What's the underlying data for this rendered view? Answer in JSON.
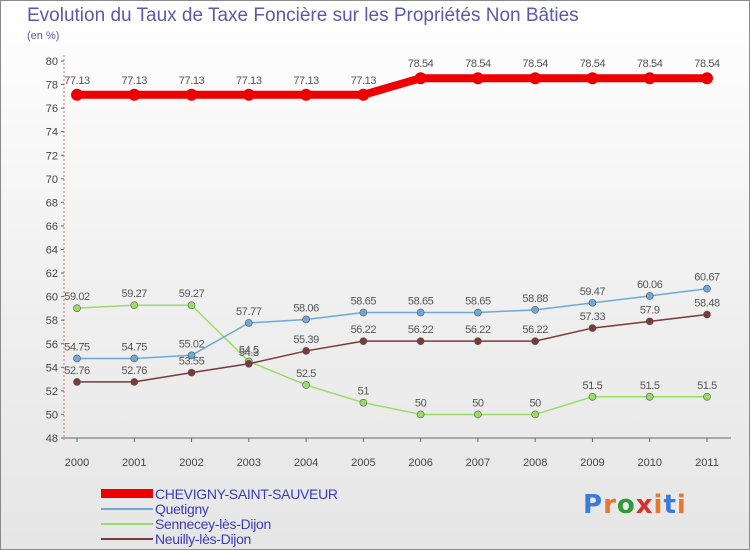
{
  "title": "Evolution du Taux de Taxe Foncière sur les Propriétés Non Bâties",
  "unit_label": "(en %)",
  "logo": {
    "text": "Proxiti"
  },
  "chart_data": {
    "type": "line",
    "title": "Evolution du Taux de Taxe Foncière sur les Propriétés Non Bâties",
    "ylabel": "(en %)",
    "xlabel": "",
    "x": [
      "2000",
      "2001",
      "2002",
      "2003",
      "2004",
      "2005",
      "2006",
      "2007",
      "2008",
      "2009",
      "2010",
      "2011"
    ],
    "ylim": [
      48,
      80
    ],
    "yticks": [
      "48",
      "50",
      "52",
      "54",
      "56",
      "58",
      "60",
      "62",
      "64",
      "66",
      "68",
      "70",
      "72",
      "74",
      "76",
      "78",
      "80"
    ],
    "grid": false,
    "legend_position": "bottom-left",
    "series": [
      {
        "name": "CHEVIGNY-SAINT-SAUVEUR",
        "color": "#ee0000",
        "values": [
          77.13,
          77.13,
          77.13,
          77.13,
          77.13,
          77.13,
          78.54,
          78.54,
          78.54,
          78.54,
          78.54,
          78.54
        ],
        "labels": [
          "77.13",
          "77.13",
          "77.13",
          "77.13",
          "77.13",
          "77.13",
          "78.54",
          "78.54",
          "78.54",
          "78.54",
          "78.54",
          "78.54"
        ]
      },
      {
        "name": "Quetigny",
        "color": "#6fa8d8",
        "values": [
          54.75,
          54.75,
          55.02,
          57.77,
          58.06,
          58.65,
          58.65,
          58.65,
          58.88,
          59.47,
          60.06,
          60.67
        ],
        "labels": [
          "54.75",
          "54.75",
          "55.02",
          "57.77",
          "58.06",
          "58.65",
          "58.65",
          "58.65",
          "58.88",
          "59.47",
          "60.06",
          "60.67"
        ]
      },
      {
        "name": "Sennecey-lès-Dijon",
        "color": "#99dd66",
        "values": [
          59.02,
          59.27,
          59.27,
          54.5,
          52.5,
          51,
          50,
          50,
          50,
          51.5,
          51.5,
          51.5
        ],
        "labels": [
          "59.02",
          "59.27",
          "59.27",
          "54.5",
          "52.5",
          "51",
          "50",
          "50",
          "50",
          "51.5",
          "51.5",
          "51.5"
        ]
      },
      {
        "name": "Neuilly-lès-Dijon",
        "color": "#7a3a3a",
        "values": [
          52.76,
          52.76,
          53.55,
          54.3,
          55.39,
          56.22,
          56.22,
          56.22,
          56.22,
          57.33,
          57.9,
          58.48
        ],
        "labels": [
          "52.76",
          "52.76",
          "53.55",
          "54.3",
          "55.39",
          "56.22",
          "56.22",
          "56.22",
          "56.22",
          "57.33",
          "57.9",
          "58.48"
        ]
      }
    ]
  }
}
